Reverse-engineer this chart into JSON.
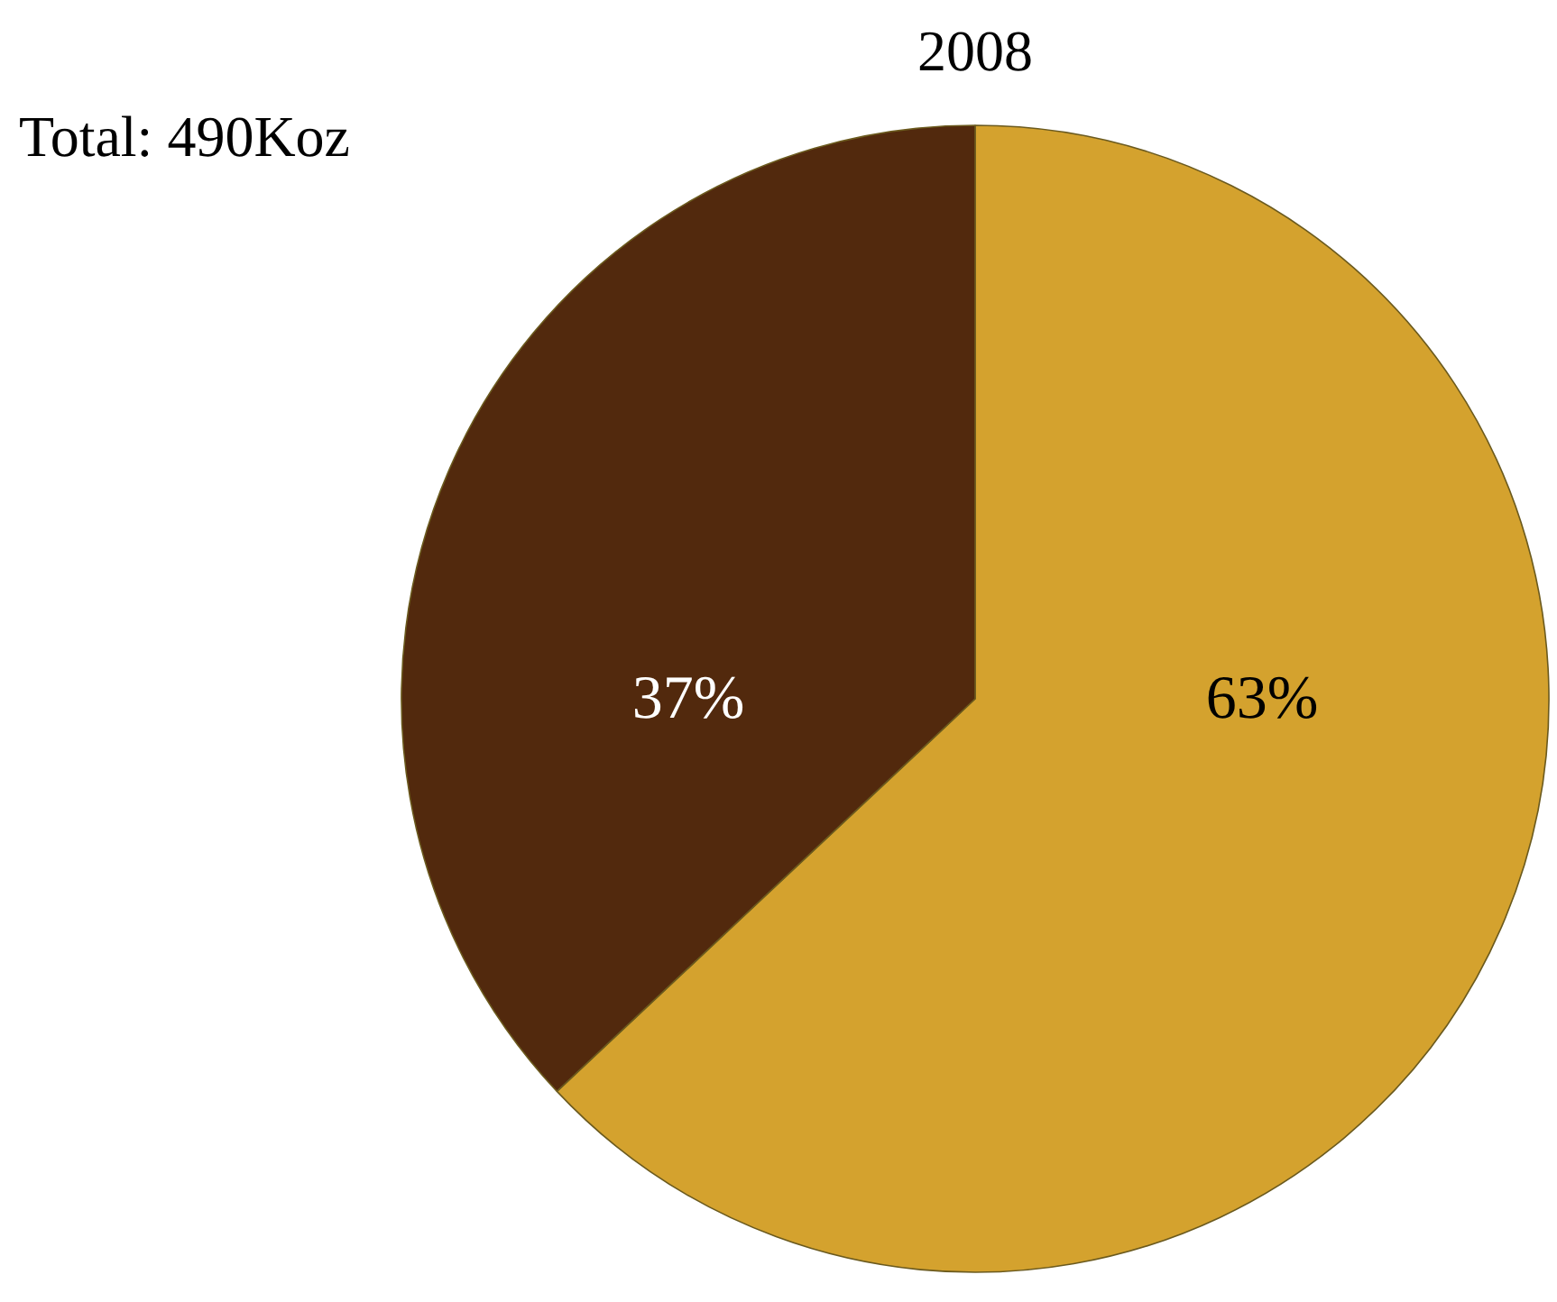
{
  "chart_data": {
    "type": "pie",
    "title": "2008",
    "annotations": [
      "Total: 490Koz"
    ],
    "categories": [
      null,
      null
    ],
    "values": [
      63,
      37
    ],
    "colors": [
      "#d4a22e",
      "#52290d"
    ],
    "value_labels": [
      "63%",
      "37%"
    ]
  }
}
